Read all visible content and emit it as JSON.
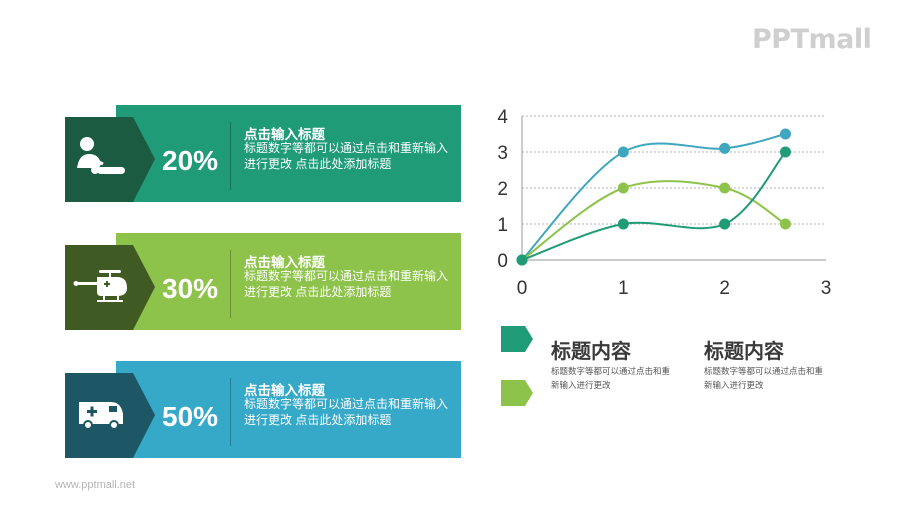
{
  "brand": {
    "logo_text": "PPTmall",
    "footer_url": "www.pptmall.net"
  },
  "cards": [
    {
      "percent": "20%",
      "title": "点击输入标题",
      "desc": "标题数字等都可以通过点击和重新输入进行更改 点击此处添加标题",
      "icon": "cpr-icon",
      "color": "#1f9b78",
      "tab_color": "#1a5b41"
    },
    {
      "percent": "30%",
      "title": "点击输入标题",
      "desc": "标题数字等都可以通过点击和重新输入进行更改 点击此处添加标题",
      "icon": "helicopter-icon",
      "color": "#8dc34a",
      "tab_color": "#3f5a22"
    },
    {
      "percent": "50%",
      "title": "点击输入标题",
      "desc": "标题数字等都可以通过点击和重新输入进行更改 点击此处添加标题",
      "icon": "ambulance-icon",
      "color": "#36a8c8",
      "tab_color": "#1d5664"
    }
  ],
  "chart_data": {
    "type": "scatter",
    "xlim": [
      0,
      3
    ],
    "ylim": [
      0,
      4
    ],
    "x_ticks": [
      "0",
      "1",
      "2",
      "3"
    ],
    "y_ticks": [
      "0",
      "1",
      "2",
      "3",
      "4"
    ],
    "grid": true,
    "series": [
      {
        "color": "#3fa6bf",
        "points": [
          [
            0,
            0
          ],
          [
            1,
            3
          ],
          [
            2,
            3.1
          ],
          [
            2.6,
            3.5
          ]
        ]
      },
      {
        "color": "#8dc34a",
        "points": [
          [
            0,
            0
          ],
          [
            1,
            2
          ],
          [
            2,
            2
          ],
          [
            2.6,
            1
          ]
        ]
      },
      {
        "color": "#1f9b78",
        "points": [
          [
            0,
            0
          ],
          [
            1,
            1
          ],
          [
            2,
            1
          ],
          [
            2.6,
            3
          ]
        ]
      }
    ]
  },
  "legend": {
    "items": [
      {
        "title": "标题内容",
        "desc": "标题数字等都可以通过点击和重新输入进行更改",
        "color": "#1f9b78"
      },
      {
        "title": "标题内容",
        "desc": "标题数字等都可以通过点击和重新输入进行更改",
        "color": "#8dc34a"
      }
    ]
  }
}
